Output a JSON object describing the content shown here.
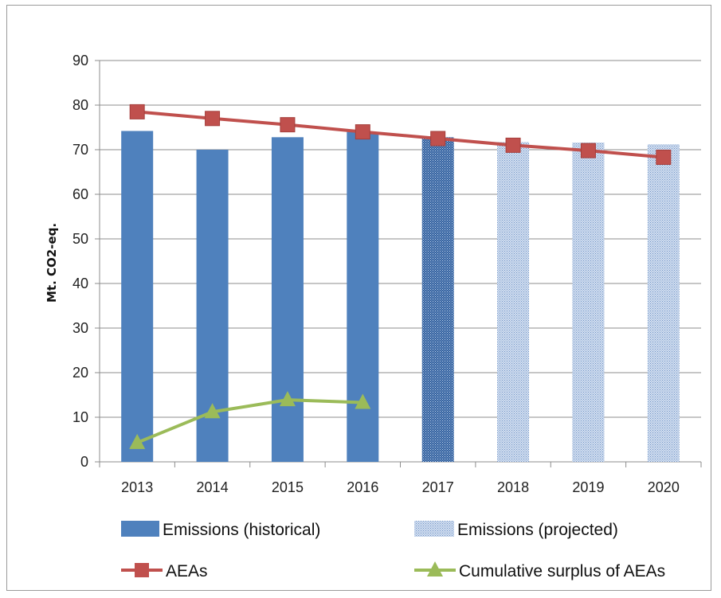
{
  "chart_data": {
    "type": "bar",
    "title": "",
    "xlabel": "",
    "ylabel": "Mt. CO2-eq.",
    "ylim": [
      0,
      90
    ],
    "yticks": [
      0,
      10,
      20,
      30,
      40,
      50,
      60,
      70,
      80,
      90
    ],
    "categories": [
      "2013",
      "2014",
      "2015",
      "2016",
      "2017",
      "2018",
      "2019",
      "2020"
    ],
    "grid": true,
    "legend_position": "bottom",
    "series": [
      {
        "name": "Emissions (historical)",
        "kind": "bar",
        "color": "#4f81bd",
        "values": [
          74.2,
          70.0,
          72.8,
          74.0,
          null,
          null,
          null,
          null
        ]
      },
      {
        "name": "Emissions (projected)",
        "kind": "bar",
        "pattern": "dotted",
        "color": "#4f81bd",
        "values": [
          null,
          null,
          null,
          null,
          72.8,
          71.7,
          71.6,
          71.2
        ]
      },
      {
        "name": "AEAs",
        "kind": "line",
        "marker": "square",
        "color": "#c0504d",
        "values": [
          78.5,
          77.0,
          75.6,
          74.0,
          72.5,
          71.0,
          69.8,
          68.3
        ]
      },
      {
        "name": "Cumulative surplus of AEAs",
        "kind": "line",
        "marker": "triangle",
        "color": "#9bbb59",
        "values": [
          4.3,
          11.2,
          13.9,
          13.3,
          null,
          null,
          null,
          null
        ]
      }
    ]
  }
}
